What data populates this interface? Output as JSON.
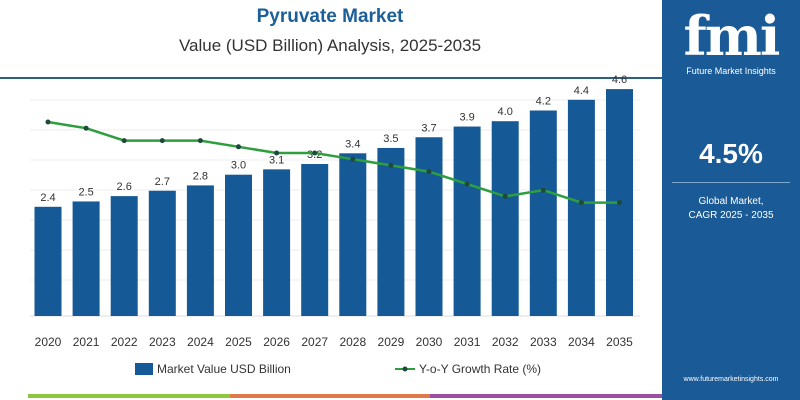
{
  "chart_data": {
    "type": "bar",
    "title": "Pyruvate Market",
    "subtitle": "Value (USD Billion) Analysis, 2025-2035",
    "categories": [
      "2020",
      "2021",
      "2022",
      "2023",
      "2024",
      "2025",
      "2026",
      "2027",
      "2028",
      "2029",
      "2030",
      "2031",
      "2032",
      "2033",
      "2034",
      "2035"
    ],
    "series": [
      {
        "name": "Market Value USD Billion",
        "type": "bar",
        "color": "#155a96",
        "values": [
          2.4,
          2.5,
          2.6,
          2.7,
          2.8,
          3.0,
          3.1,
          3.2,
          3.4,
          3.5,
          3.7,
          3.9,
          4.0,
          4.2,
          4.4,
          4.6
        ],
        "labels": [
          "2.4",
          "2.5",
          "2.6",
          "2.7",
          "2.8",
          "3.0",
          "3.1",
          "3.2",
          "3.4",
          "3.5",
          "3.7",
          "3.9",
          "4.0",
          "4.2",
          "4.4",
          "4.6"
        ]
      },
      {
        "name": "Y-o-Y Growth Rate (%)",
        "type": "line",
        "color": "#2e9e3e",
        "values": [
          5.1,
          5.0,
          4.8,
          4.8,
          4.8,
          4.7,
          4.6,
          4.6,
          4.5,
          4.4,
          4.3,
          4.1,
          3.9,
          4.0,
          3.8,
          3.8
        ]
      }
    ],
    "grid": true,
    "legend": "bottom"
  },
  "panel": {
    "logo": "fmi",
    "logo_sub": "Future Market Insights",
    "cagr": "4.5%",
    "cagr_label_1": "Global Market,",
    "cagr_label_2": "CAGR 2025 - 2035",
    "url": "www.futuremarketinsights.com"
  },
  "colors": {
    "bar": "#155a96",
    "line": "#2e9e3e",
    "panel": "#1a5a96"
  }
}
